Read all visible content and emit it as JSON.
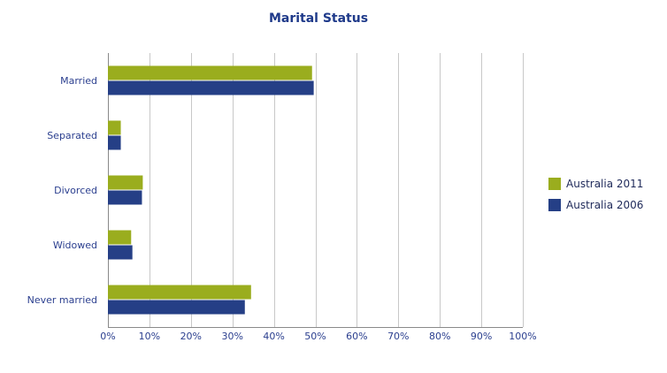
{
  "chart_data": {
    "type": "bar",
    "orientation": "horizontal",
    "title": "Marital Status",
    "categories": [
      "Married",
      "Separated",
      "Divorced",
      "Widowed",
      "Never married"
    ],
    "series": [
      {
        "name": "Australia 2011",
        "color": "#9aad1e",
        "values": [
          49.2,
          3.1,
          8.4,
          5.6,
          34.5
        ]
      },
      {
        "name": "Australia 2006",
        "color": "#253f86",
        "values": [
          49.6,
          3.1,
          8.2,
          5.9,
          33.0
        ]
      }
    ],
    "xlim": [
      0,
      100
    ],
    "xticks": [
      0,
      10,
      20,
      30,
      40,
      50,
      60,
      70,
      80,
      90,
      100
    ],
    "x_tick_suffix": "%",
    "grid": "vertical",
    "legend_position": "right",
    "colors": {
      "title": "#1f3a8a",
      "axis_text": "#2b3f8f",
      "grid": "#c8c8c8"
    }
  }
}
